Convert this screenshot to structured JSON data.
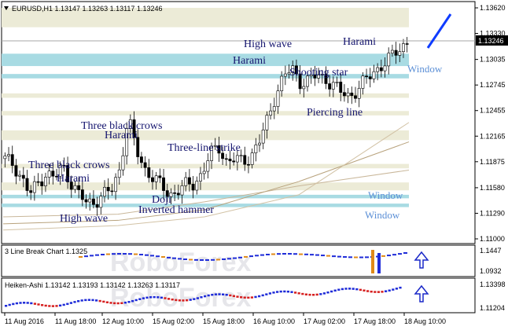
{
  "chart_data": [
    {
      "type": "candlestick",
      "symbol_line": "EURUSD,H1  1.13147 1.13263 1.13117 1.13246",
      "last_price_label": "1.13246",
      "y_ticks": [
        "1.13620",
        "1.13330",
        "1.13035",
        "1.12745",
        "1.12455",
        "1.12165",
        "1.11875",
        "1.11580",
        "1.11290",
        "1.11000"
      ],
      "ylim": [
        1.11,
        1.1362
      ],
      "x_ticks": [
        "11 Aug 2016",
        "11 Aug 18:00",
        "12 Aug 10:00",
        "15 Aug 02:00",
        "15 Aug 18:00",
        "16 Aug 10:00",
        "17 Aug 02:00",
        "17 Aug 18:00",
        "18 Aug 10:00"
      ],
      "close_path": [
        1.119,
        1.1185,
        1.117,
        1.115,
        1.1163,
        1.1175,
        1.1168,
        1.1183,
        1.1165,
        1.115,
        1.114,
        1.1143,
        1.115,
        1.1155,
        1.118,
        1.1238,
        1.12,
        1.118,
        1.117,
        1.116,
        1.115,
        1.1155,
        1.116,
        1.1162,
        1.1175,
        1.1195,
        1.1205,
        1.1188,
        1.119,
        1.1187,
        1.1195,
        1.121,
        1.1235,
        1.1265,
        1.1285,
        1.1292,
        1.1278,
        1.128,
        1.1285,
        1.1282,
        1.1275,
        1.1265,
        1.1262,
        1.127,
        1.128,
        1.129,
        1.1298,
        1.1305,
        1.1315,
        1.1324
      ],
      "zones": [
        {
          "low": 1.1296,
          "high": 1.131
        },
        {
          "low": 1.1282,
          "high": 1.1287
        },
        {
          "low": 1.126,
          "high": 1.1265
        },
        {
          "low": 1.124,
          "high": 1.1245
        },
        {
          "low": 1.1212,
          "high": 1.1223
        },
        {
          "low": 1.118,
          "high": 1.1185
        },
        {
          "low": 1.1155,
          "high": 1.1164
        },
        {
          "low": 1.1146,
          "high": 1.115
        },
        {
          "low": 1.1136,
          "high": 1.114
        },
        {
          "low": 1.134,
          "high": 1.1362
        }
      ],
      "annotations": [
        "High wave",
        "Harami",
        "Harami",
        "Shooting star",
        "Piercing line",
        "Window",
        "Three black crows",
        "Harami",
        "Three-line strike",
        "Three black crows",
        "Harami",
        "Doji",
        "Inverted hammer",
        "High wave",
        "Window",
        "Window"
      ]
    },
    {
      "type": "line-break",
      "label": "3 Line Break Chart 1.1325",
      "y_ticks": [
        "1.1447",
        "1.0932"
      ],
      "arrow": "up"
    },
    {
      "type": "heiken-ashi",
      "label": "Heiken-Ashi 1.13142 1.13193 1.13142 1.13263 1.13117",
      "y_ticks": [
        "1.13398",
        "1.11204"
      ],
      "arrow": "up"
    }
  ],
  "watermark": "RoboForex"
}
